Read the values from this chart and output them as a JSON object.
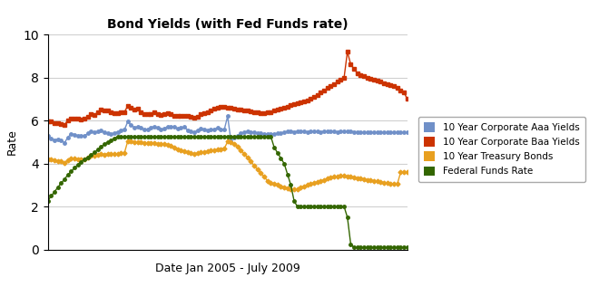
{
  "title": "Bond Yields (with Fed Funds rate)",
  "xlabel": "Date Jan 2005 - July 2009",
  "ylabel": "Rate",
  "ylim": [
    0,
    10
  ],
  "yticks": [
    0,
    2,
    4,
    6,
    8,
    10
  ],
  "legend_labels": [
    "10 Year Corporate Aaa Yields",
    "10 Year Corporate Baa Yields",
    "10 Year Treasury Bonds",
    "Federal Funds Rate"
  ],
  "colors": {
    "aaa": "#7090C8",
    "baa": "#CC3300",
    "treasury": "#E8A020",
    "fed": "#336600"
  },
  "aaa": [
    5.28,
    5.15,
    5.1,
    5.14,
    5.07,
    4.97,
    5.22,
    5.39,
    5.35,
    5.3,
    5.27,
    5.3,
    5.4,
    5.5,
    5.45,
    5.49,
    5.55,
    5.45,
    5.4,
    5.38,
    5.42,
    5.48,
    5.55,
    5.58,
    5.95,
    5.78,
    5.68,
    5.71,
    5.65,
    5.58,
    5.6,
    5.68,
    5.72,
    5.65,
    5.6,
    5.62,
    5.72,
    5.72,
    5.7,
    5.62,
    5.65,
    5.7,
    5.55,
    5.5,
    5.45,
    5.55,
    5.62,
    5.6,
    5.55,
    5.58,
    5.6,
    5.65,
    5.6,
    5.58,
    6.2,
    5.05,
    5.2,
    5.3,
    5.4,
    5.45,
    5.5,
    5.48,
    5.45,
    5.42,
    5.4,
    5.38,
    5.38,
    5.38,
    5.38,
    5.4,
    5.42,
    5.45,
    5.5,
    5.52,
    5.48,
    5.5,
    5.52,
    5.5,
    5.48,
    5.5,
    5.52,
    5.5,
    5.48,
    5.5,
    5.52,
    5.5,
    5.5,
    5.48,
    5.5,
    5.5,
    5.5,
    5.5,
    5.48,
    5.48,
    5.45,
    5.45,
    5.45,
    5.45,
    5.45,
    5.45,
    5.45,
    5.45,
    5.45,
    5.45,
    5.45,
    5.45,
    5.45,
    5.45,
    5.45
  ],
  "baa": [
    5.98,
    5.95,
    5.9,
    5.88,
    5.85,
    5.8,
    6.02,
    6.08,
    6.1,
    6.08,
    6.05,
    6.08,
    6.18,
    6.28,
    6.25,
    6.4,
    6.5,
    6.48,
    6.45,
    6.4,
    6.35,
    6.35,
    6.4,
    6.4,
    6.68,
    6.6,
    6.5,
    6.55,
    6.4,
    6.28,
    6.3,
    6.3,
    6.38,
    6.3,
    6.25,
    6.3,
    6.35,
    6.28,
    6.22,
    6.2,
    6.2,
    6.22,
    6.2,
    6.18,
    6.15,
    6.18,
    6.3,
    6.35,
    6.4,
    6.48,
    6.55,
    6.6,
    6.62,
    6.65,
    6.6,
    6.58,
    6.55,
    6.52,
    6.5,
    6.48,
    6.45,
    6.42,
    6.4,
    6.38,
    6.35,
    6.35,
    6.38,
    6.4,
    6.45,
    6.5,
    6.55,
    6.6,
    6.65,
    6.7,
    6.75,
    6.8,
    6.85,
    6.9,
    6.95,
    7.0,
    7.1,
    7.2,
    7.3,
    7.4,
    7.5,
    7.6,
    7.7,
    7.8,
    7.9,
    8.0,
    9.2,
    8.6,
    8.4,
    8.2,
    8.1,
    8.05,
    8.0,
    7.95,
    7.9,
    7.85,
    7.8,
    7.75,
    7.7,
    7.65,
    7.6,
    7.5,
    7.4,
    7.3,
    7.0
  ],
  "treasury": [
    4.2,
    4.18,
    4.15,
    4.12,
    4.1,
    4.05,
    4.15,
    4.22,
    4.25,
    4.2,
    4.18,
    4.2,
    4.3,
    4.38,
    4.35,
    4.42,
    4.45,
    4.42,
    4.45,
    4.45,
    4.45,
    4.45,
    4.48,
    4.5,
    5.05,
    5.02,
    5.0,
    5.0,
    4.98,
    4.95,
    4.95,
    4.95,
    4.95,
    4.92,
    4.9,
    4.92,
    4.88,
    4.82,
    4.75,
    4.68,
    4.62,
    4.58,
    4.52,
    4.48,
    4.45,
    4.48,
    4.52,
    4.55,
    4.58,
    4.6,
    4.62,
    4.65,
    4.68,
    4.7,
    5.02,
    5.0,
    4.92,
    4.8,
    4.62,
    4.45,
    4.28,
    4.1,
    3.9,
    3.72,
    3.55,
    3.38,
    3.2,
    3.1,
    3.05,
    3.0,
    2.95,
    2.9,
    2.85,
    2.8,
    2.8,
    2.82,
    2.88,
    2.95,
    3.0,
    3.05,
    3.1,
    3.15,
    3.2,
    3.25,
    3.3,
    3.35,
    3.38,
    3.4,
    3.42,
    3.42,
    3.4,
    3.38,
    3.35,
    3.32,
    3.3,
    3.28,
    3.25,
    3.22,
    3.2,
    3.18,
    3.15,
    3.12,
    3.1,
    3.08,
    3.05,
    3.05,
    3.6,
    3.6,
    3.6
  ],
  "fed": [
    2.28,
    2.5,
    2.7,
    2.9,
    3.1,
    3.28,
    3.48,
    3.65,
    3.8,
    3.95,
    4.08,
    4.2,
    4.3,
    4.4,
    4.52,
    4.65,
    4.78,
    4.9,
    5.0,
    5.08,
    5.18,
    5.25,
    5.25,
    5.25,
    5.25,
    5.25,
    5.25,
    5.25,
    5.25,
    5.25,
    5.25,
    5.25,
    5.25,
    5.25,
    5.25,
    5.25,
    5.25,
    5.25,
    5.25,
    5.25,
    5.25,
    5.25,
    5.25,
    5.25,
    5.25,
    5.25,
    5.25,
    5.25,
    5.25,
    5.25,
    5.25,
    5.25,
    5.25,
    5.25,
    5.25,
    5.25,
    5.25,
    5.25,
    5.25,
    5.25,
    5.25,
    5.25,
    5.25,
    5.25,
    5.25,
    5.25,
    5.25,
    5.25,
    4.75,
    4.5,
    4.25,
    4.0,
    3.5,
    3.0,
    2.25,
    2.0,
    2.0,
    2.0,
    2.0,
    2.0,
    2.0,
    2.0,
    2.0,
    2.0,
    2.0,
    2.0,
    2.0,
    2.0,
    2.0,
    2.0,
    1.5,
    0.25,
    0.1,
    0.1,
    0.1,
    0.1,
    0.1,
    0.1,
    0.1,
    0.1,
    0.1,
    0.1,
    0.1,
    0.1,
    0.1,
    0.1,
    0.1,
    0.1,
    0.1
  ],
  "background_color": "#ffffff",
  "grid_color": "#d0d0d0"
}
